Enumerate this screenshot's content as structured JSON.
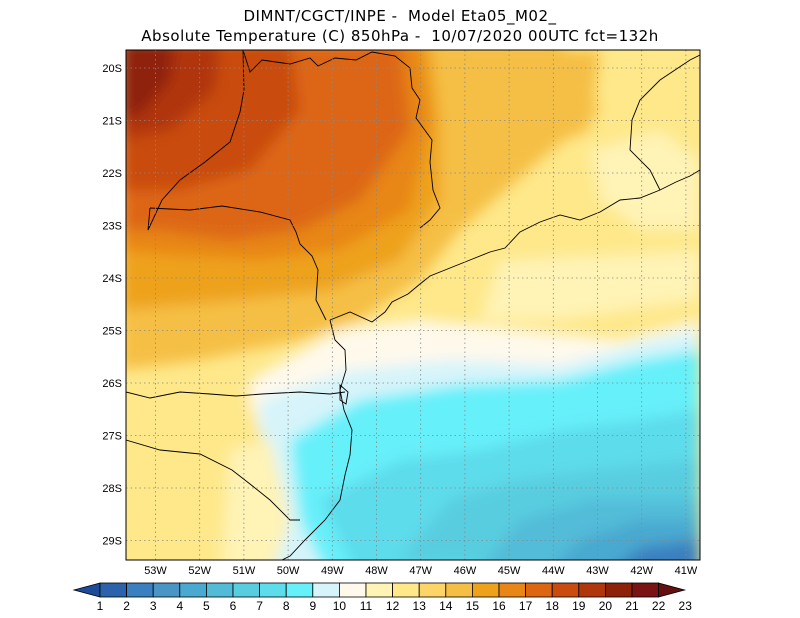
{
  "header": {
    "line1": "DIMNT/CGCT/INPE -  Model Eta05_M02_",
    "line2": "Absolute Temperature (C) 850hPa -  10/07/2020 00UTC fct=132h"
  },
  "axes": {
    "lat_labels": [
      "20S",
      "21S",
      "22S",
      "23S",
      "24S",
      "25S",
      "26S",
      "27S",
      "28S",
      "29S"
    ],
    "lon_labels": [
      "53W",
      "52W",
      "51W",
      "50W",
      "49W",
      "48W",
      "47W",
      "46W",
      "45W",
      "44W",
      "43W",
      "42W",
      "41W"
    ]
  },
  "colorbar": {
    "labels": [
      "1",
      "2",
      "3",
      "4",
      "5",
      "6",
      "7",
      "8",
      "9",
      "10",
      "11",
      "12",
      "13",
      "14",
      "15",
      "16",
      "17",
      "18",
      "19",
      "20",
      "21",
      "22",
      "23"
    ],
    "colors": [
      "#1e4a9a",
      "#2a63ab",
      "#3a7fbf",
      "#4996c6",
      "#4aa9d0",
      "#52bcd8",
      "#58cde0",
      "#5ddceb",
      "#66f0fa",
      "#d6f4fa",
      "#fff9ec",
      "#fff3b5",
      "#fee88a",
      "#fcd468",
      "#f5bf45",
      "#eea21c",
      "#e88618",
      "#dd6612",
      "#c94b0d",
      "#b0360b",
      "#8e2208",
      "#7a1414",
      "#651010"
    ]
  },
  "colors": {
    "coast_line": "#000000",
    "grid_line": "#888888"
  }
}
